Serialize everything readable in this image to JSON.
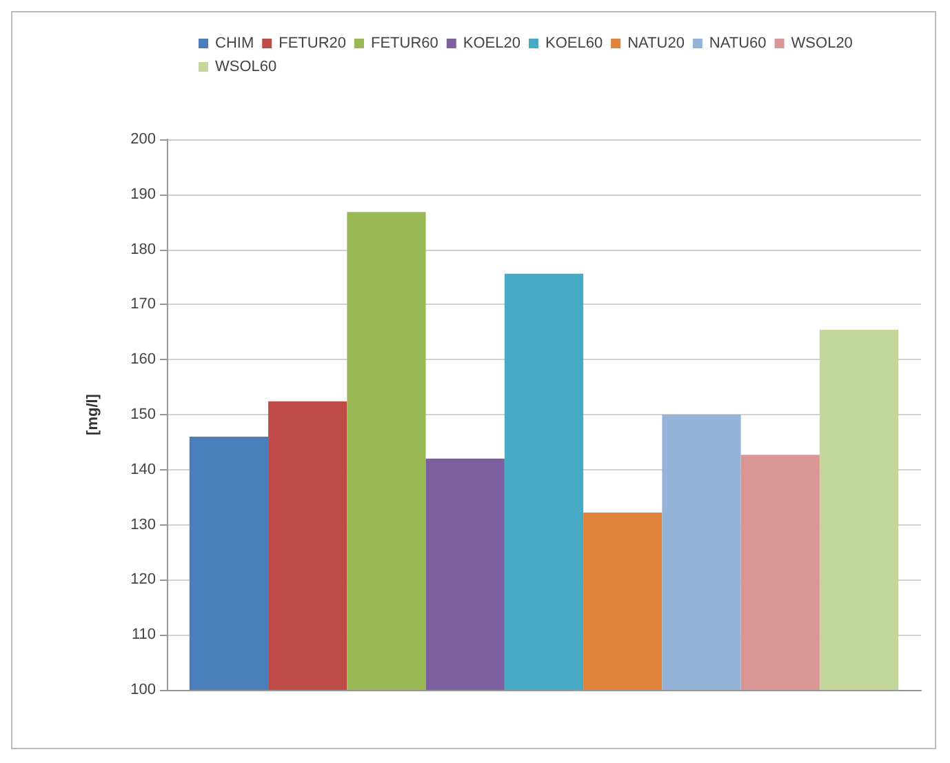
{
  "chart_data": {
    "type": "bar",
    "ylabel": "[mg/l]",
    "categories": [
      null
    ],
    "series": [
      {
        "name": "CHIM",
        "color": "#4a7ebb",
        "values": [
          146
        ]
      },
      {
        "name": "FETUR20",
        "color": "#be4b48",
        "values": [
          152.4
        ]
      },
      {
        "name": "FETUR60",
        "color": "#98b954",
        "values": [
          186.8
        ]
      },
      {
        "name": "KOEL20",
        "color": "#7d60a0",
        "values": [
          142
        ]
      },
      {
        "name": "KOEL60",
        "color": "#46aac5",
        "values": [
          175.6
        ]
      },
      {
        "name": "NATU20",
        "color": "#e0823a",
        "values": [
          132.2
        ]
      },
      {
        "name": "NATU60",
        "color": "#95b3d7",
        "values": [
          150
        ]
      },
      {
        "name": "WSOL20",
        "color": "#d99694",
        "values": [
          142.7
        ]
      },
      {
        "name": "WSOL60",
        "color": "#c3d69b",
        "values": [
          165.4
        ]
      }
    ],
    "ylim": [
      100,
      200
    ],
    "yticks": [
      100,
      110,
      120,
      130,
      140,
      150,
      160,
      170,
      180,
      190,
      200
    ],
    "grid": "y",
    "legend": "top"
  }
}
